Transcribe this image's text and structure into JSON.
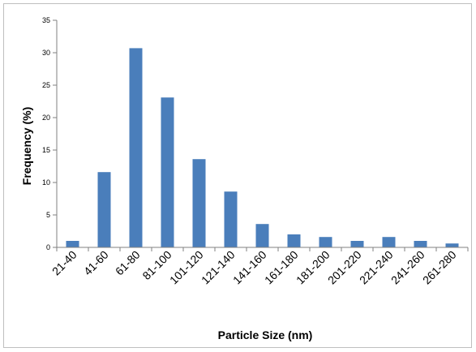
{
  "chart_data": {
    "type": "bar",
    "title": "",
    "xlabel": "Particle Size (nm)",
    "ylabel": "Frequency (%)",
    "ylim": [
      0,
      35
    ],
    "yticks": [
      0,
      5,
      10,
      15,
      20,
      25,
      30,
      35
    ],
    "grid": false,
    "legend": "none",
    "bar_color": "#4a7ebb",
    "categories": [
      "21-40",
      "41-60",
      "61-80",
      "81-100",
      "101-120",
      "121-140",
      "141-160",
      "161-180",
      "181-200",
      "201-220",
      "221-240",
      "241-260",
      "261-280"
    ],
    "values": [
      1,
      11.6,
      30.7,
      23.1,
      13.6,
      8.6,
      3.6,
      2,
      1.6,
      1,
      1.6,
      1,
      0.6
    ]
  }
}
